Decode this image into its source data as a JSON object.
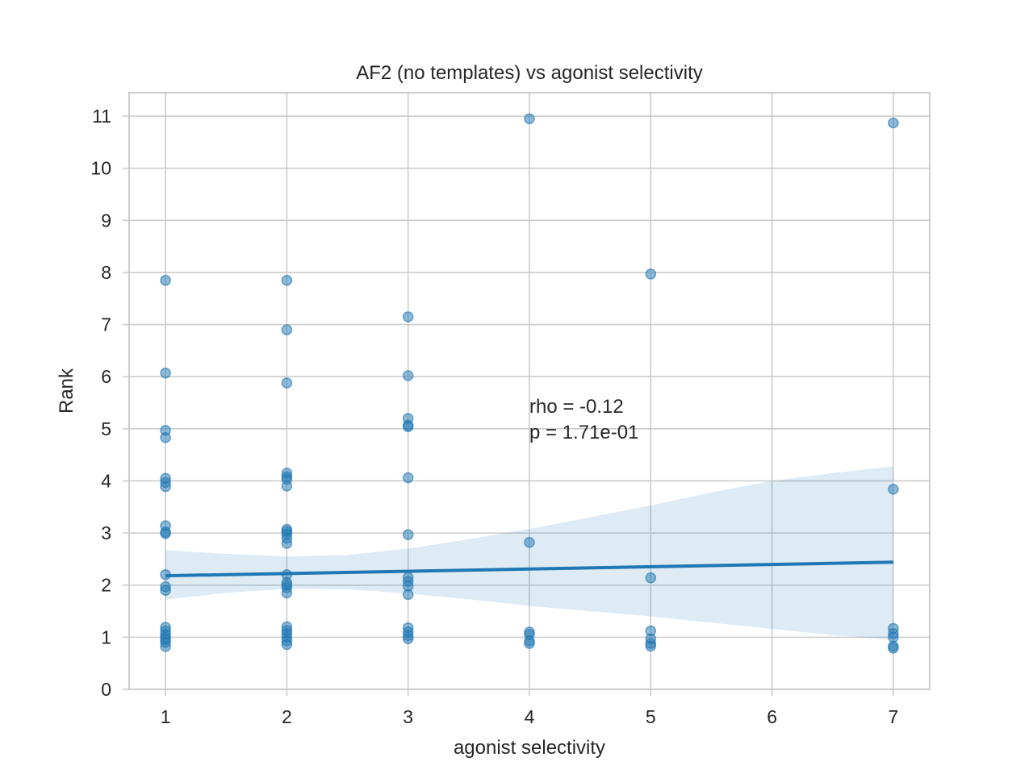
{
  "chart_data": {
    "type": "scatter",
    "title": "AF2 (no templates) vs agonist selectivity",
    "xlabel": "agonist selectivity",
    "ylabel": "Rank",
    "xlim": [
      0.7,
      7.3
    ],
    "ylim": [
      0,
      11.45
    ],
    "x_ticks": [
      "1",
      "2",
      "3",
      "4",
      "5",
      "6",
      "7"
    ],
    "y_ticks": [
      "0",
      "1",
      "2",
      "3",
      "4",
      "5",
      "6",
      "7",
      "8",
      "9",
      "10",
      "11"
    ],
    "grid": true,
    "points": [
      {
        "x": 1,
        "y": 7.85
      },
      {
        "x": 1,
        "y": 6.07
      },
      {
        "x": 1,
        "y": 4.97
      },
      {
        "x": 1,
        "y": 4.83
      },
      {
        "x": 1,
        "y": 4.05
      },
      {
        "x": 1,
        "y": 3.97
      },
      {
        "x": 1,
        "y": 3.89
      },
      {
        "x": 1,
        "y": 3.14
      },
      {
        "x": 1,
        "y": 3.02
      },
      {
        "x": 1,
        "y": 2.99
      },
      {
        "x": 1,
        "y": 2.2
      },
      {
        "x": 1,
        "y": 1.97
      },
      {
        "x": 1,
        "y": 1.9
      },
      {
        "x": 1,
        "y": 1.19
      },
      {
        "x": 1,
        "y": 1.12
      },
      {
        "x": 1,
        "y": 1.05
      },
      {
        "x": 1,
        "y": 1.0
      },
      {
        "x": 1,
        "y": 0.95
      },
      {
        "x": 1,
        "y": 0.9
      },
      {
        "x": 1,
        "y": 0.82
      },
      {
        "x": 2,
        "y": 7.85
      },
      {
        "x": 2,
        "y": 6.9
      },
      {
        "x": 2,
        "y": 5.88
      },
      {
        "x": 2,
        "y": 4.15
      },
      {
        "x": 2,
        "y": 4.08
      },
      {
        "x": 2,
        "y": 4.03
      },
      {
        "x": 2,
        "y": 3.9
      },
      {
        "x": 2,
        "y": 3.07
      },
      {
        "x": 2,
        "y": 3.03
      },
      {
        "x": 2,
        "y": 2.98
      },
      {
        "x": 2,
        "y": 2.9
      },
      {
        "x": 2,
        "y": 2.8
      },
      {
        "x": 2,
        "y": 2.2
      },
      {
        "x": 2,
        "y": 2.05
      },
      {
        "x": 2,
        "y": 2.0
      },
      {
        "x": 2,
        "y": 1.95
      },
      {
        "x": 2,
        "y": 1.85
      },
      {
        "x": 2,
        "y": 1.2
      },
      {
        "x": 2,
        "y": 1.13
      },
      {
        "x": 2,
        "y": 1.07
      },
      {
        "x": 2,
        "y": 1.0
      },
      {
        "x": 2,
        "y": 0.93
      },
      {
        "x": 2,
        "y": 0.86
      },
      {
        "x": 3,
        "y": 7.15
      },
      {
        "x": 3,
        "y": 6.02
      },
      {
        "x": 3,
        "y": 5.2
      },
      {
        "x": 3,
        "y": 5.07
      },
      {
        "x": 3,
        "y": 5.04
      },
      {
        "x": 3,
        "y": 4.06
      },
      {
        "x": 3,
        "y": 2.97
      },
      {
        "x": 3,
        "y": 2.15
      },
      {
        "x": 3,
        "y": 2.07
      },
      {
        "x": 3,
        "y": 1.98
      },
      {
        "x": 3,
        "y": 1.82
      },
      {
        "x": 3,
        "y": 1.18
      },
      {
        "x": 3,
        "y": 1.1
      },
      {
        "x": 3,
        "y": 1.03
      },
      {
        "x": 3,
        "y": 0.97
      },
      {
        "x": 4,
        "y": 10.95
      },
      {
        "x": 4,
        "y": 2.82
      },
      {
        "x": 4,
        "y": 1.1
      },
      {
        "x": 4,
        "y": 1.05
      },
      {
        "x": 4,
        "y": 0.93
      },
      {
        "x": 4,
        "y": 0.88
      },
      {
        "x": 5,
        "y": 7.97
      },
      {
        "x": 5,
        "y": 2.14
      },
      {
        "x": 5,
        "y": 1.12
      },
      {
        "x": 5,
        "y": 0.97
      },
      {
        "x": 5,
        "y": 0.88
      },
      {
        "x": 5,
        "y": 0.83
      },
      {
        "x": 7,
        "y": 10.87
      },
      {
        "x": 7,
        "y": 3.84
      },
      {
        "x": 7,
        "y": 1.17
      },
      {
        "x": 7,
        "y": 1.07
      },
      {
        "x": 7,
        "y": 1.0
      },
      {
        "x": 7,
        "y": 0.83
      },
      {
        "x": 7,
        "y": 0.79
      }
    ],
    "regression": {
      "x": [
        1,
        7
      ],
      "y": [
        2.18,
        2.44
      ]
    },
    "confidence_band": {
      "x": [
        1,
        1.5,
        2,
        2.5,
        3,
        3.5,
        4,
        4.5,
        5,
        5.5,
        6,
        6.5,
        7
      ],
      "lower": [
        1.72,
        1.85,
        1.93,
        1.92,
        1.84,
        1.73,
        1.6,
        1.5,
        1.4,
        1.28,
        1.16,
        1.04,
        0.95
      ],
      "upper": [
        2.67,
        2.6,
        2.55,
        2.58,
        2.7,
        2.88,
        3.08,
        3.3,
        3.53,
        3.78,
        4.0,
        4.15,
        4.28
      ]
    },
    "annotation": {
      "x": 4,
      "y": 5.4,
      "lines": [
        "rho = -0.12",
        "p = 1.71e-01"
      ]
    }
  }
}
